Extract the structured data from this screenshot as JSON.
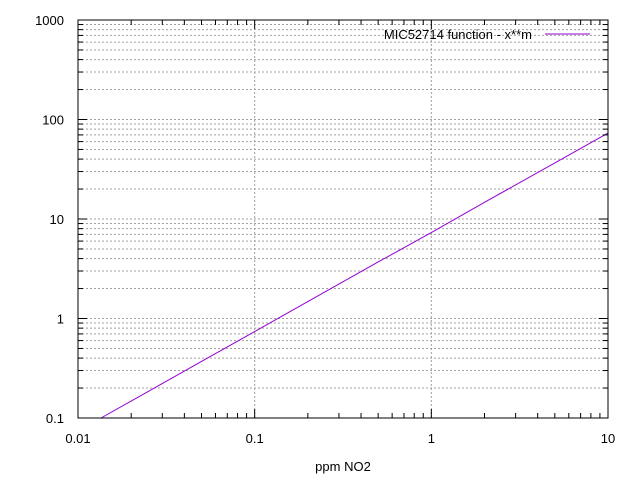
{
  "chart_data": {
    "type": "line",
    "title": "",
    "xlabel": "ppm NO2",
    "ylabel": "",
    "x_scale": "log",
    "y_scale": "log",
    "xlim": [
      0.01,
      10
    ],
    "ylim": [
      0.1,
      1000
    ],
    "x_ticks": [
      {
        "value": 0.01,
        "label": "0.01"
      },
      {
        "value": 0.1,
        "label": "0.1"
      },
      {
        "value": 1,
        "label": "1"
      },
      {
        "value": 10,
        "label": "10"
      }
    ],
    "y_ticks": [
      {
        "value": 0.1,
        "label": "0.1"
      },
      {
        "value": 1,
        "label": "1"
      },
      {
        "value": 10,
        "label": "10"
      },
      {
        "value": 100,
        "label": "100"
      },
      {
        "value": 1000,
        "label": "1000"
      }
    ],
    "grid": true,
    "legend_position": "top-right",
    "series": [
      {
        "name": "MIC52714 function -  x**m",
        "color": "#9400d3",
        "x": [
          0.0135,
          0.02,
          0.05,
          0.1,
          0.2,
          0.5,
          1,
          2,
          5,
          10
        ],
        "y": [
          0.1,
          0.148,
          0.37,
          0.74,
          1.48,
          3.7,
          7.3,
          14.7,
          36.6,
          73
        ]
      }
    ]
  }
}
